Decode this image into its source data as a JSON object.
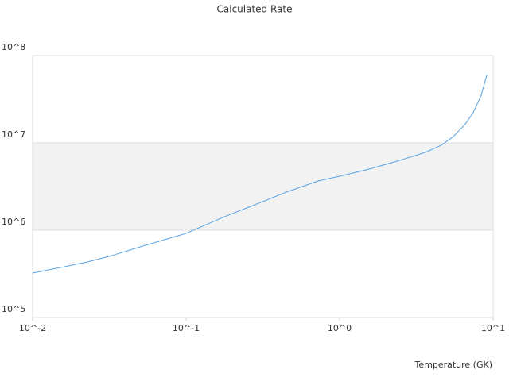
{
  "chart_data": {
    "type": "line",
    "title": "Calculated Rate",
    "x_label": "Temperature (GK)",
    "x": [
      0.01,
      0.0159,
      0.0228,
      0.0326,
      0.0525,
      0.1,
      0.173,
      0.279,
      0.45,
      0.724,
      1,
      1.48,
      2.39,
      3.63,
      4.6,
      5.5,
      6.6,
      7.4,
      8.36,
      9.1
    ],
    "series": [
      {
        "color": "#5ba3e6",
        "values": [
          323000,
          380000,
          433000,
          510000,
          660000,
          920000,
          1400000,
          1950000,
          2730000,
          3660000,
          4150000,
          4900000,
          6200000,
          7800000,
          9400000,
          11800000,
          16500000,
          22000000,
          35000000,
          60000000
        ]
      }
    ],
    "xscale": "log",
    "yscale": "log",
    "xlim": [
      0.01,
      10
    ],
    "ylim": [
      100000,
      100000000
    ],
    "xticks": [
      {
        "value": 0.01,
        "label": "10^-2"
      },
      {
        "value": 0.1,
        "label": "10^-1"
      },
      {
        "value": 1,
        "label": "10^0"
      },
      {
        "value": 10,
        "label": "10^1"
      }
    ],
    "yticks": [
      {
        "value": 100000,
        "label": "10^5"
      },
      {
        "value": 1000000,
        "label": "10^6"
      },
      {
        "value": 10000000,
        "label": "10^7"
      },
      {
        "value": 100000000,
        "label": "10^8"
      }
    ],
    "grid": true,
    "band_color": "#f2f2f2"
  }
}
